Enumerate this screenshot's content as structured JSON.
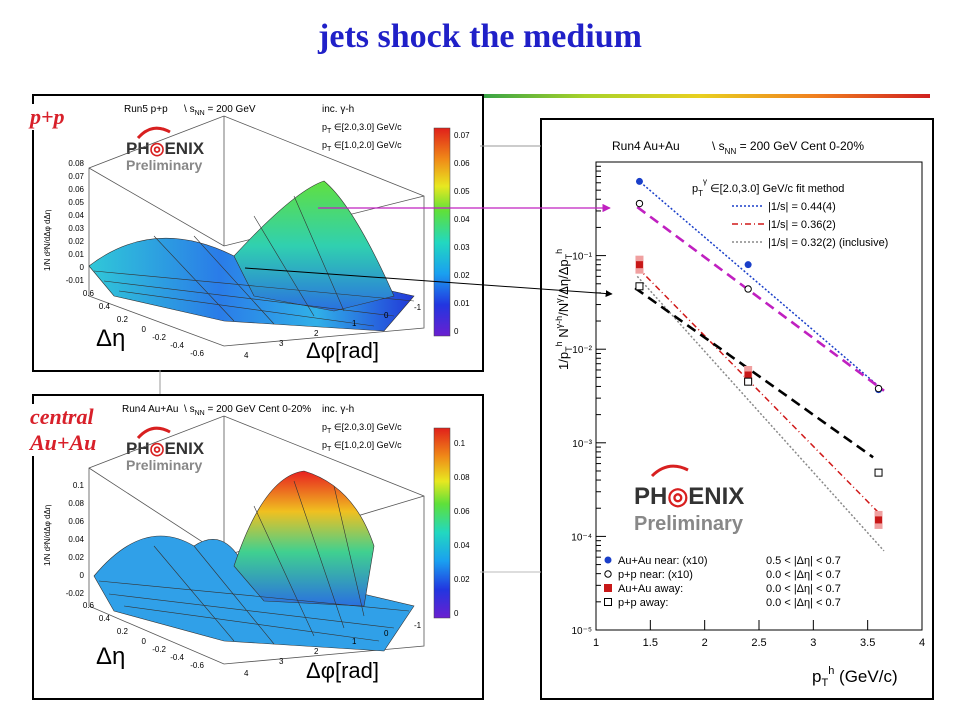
{
  "slide": {
    "title": "jets shock the medium",
    "labels": {
      "pp": "p+p",
      "central_line1": "central",
      "central_line2": "Au+Au"
    }
  },
  "top_panel": {
    "run": "Run5 p+p",
    "sqrt": "\\",
    "energy": "s",
    "energy_sub": "NN",
    "energy_val": "= 200 GeV",
    "inc": "inc. γ-h",
    "pt_gamma": "p",
    "pt_gamma_range": "∈[2.0,3.0] GeV/c",
    "pt_h_range": "∈[1.0,2.0] GeV/c",
    "logo_top": "PH",
    "logo_rest": "ENIX",
    "logo_sub": "Preliminary",
    "zlabel": "1/N d²N/dΔφ dΔη",
    "zticks": [
      "0.08",
      "0.07",
      "0.06",
      "0.05",
      "0.04",
      "0.03",
      "0.02",
      "0.01",
      "0",
      "-0.01"
    ],
    "eta_ticks": [
      "0.6",
      "0.4",
      "0.2",
      "0",
      "-0.2",
      "-0.4",
      "-0.6"
    ],
    "phi_ticks": [
      "4",
      "3",
      "2",
      "1",
      "0",
      "-1"
    ],
    "eta_label": "Δη",
    "phi_label": "Δφ[rad]",
    "colorbar": [
      "0.07",
      "0.06",
      "0.05",
      "0.04",
      "0.03",
      "0.02",
      "0.01",
      "0"
    ]
  },
  "bottom_panel": {
    "run": "Run4 Au+Au",
    "sqrt": "\\",
    "energy_val": "s",
    "energy_sub": "NN",
    "energy_rest": "= 200 GeV Cent 0-20%",
    "inc": "inc. γ-h",
    "pt_gamma_range": "∈[2.0,3.0] GeV/c",
    "pt_h_range": "∈[1.0,2.0] GeV/c",
    "logo_top": "PH",
    "logo_rest": "ENIX",
    "logo_sub": "Preliminary",
    "zticks": [
      "0.1",
      "0.08",
      "0.06",
      "0.04",
      "0.02",
      "0",
      "-0.02"
    ],
    "eta_ticks": [
      "0.6",
      "0.4",
      "0.2",
      "0",
      "-0.2",
      "-0.4",
      "-0.6"
    ],
    "phi_ticks": [
      "4",
      "3",
      "2",
      "1",
      "0",
      "-1"
    ],
    "eta_label": "Δη",
    "phi_label": "Δφ[rad]",
    "colorbar": [
      "0.1",
      "0.08",
      "0.06",
      "0.04",
      "0.02",
      "0"
    ]
  },
  "chart_data": [
    {
      "type": "scatter",
      "header": "Run4 Au+Au",
      "header_energy": "= 200 GeV Cent 0-20%",
      "legend_title": "∈[2.0,3.0] GeV/c   fit method",
      "ylabel": "1/p_T^h N^{γ-h}/N^γ/Δη/Δp_T^h",
      "xlabel": "p_T^h (GeV/c)",
      "xlim": [
        1,
        4
      ],
      "ylim": [
        1e-05,
        1
      ],
      "yscale": "log",
      "x_ticks": [
        "1",
        "1.5",
        "2",
        "2.5",
        "3",
        "3.5",
        "4"
      ],
      "y_ticks": [
        "10⁻⁵",
        "10⁻⁴",
        "10⁻³",
        "10⁻²",
        "10⁻¹"
      ],
      "fits": [
        {
          "label": "|1/s| = 0.44(4)",
          "color": "#1a3fc9",
          "style": "dotted",
          "x": [
            1.38,
            3.65
          ],
          "y": [
            0.65,
            0.0036
          ]
        },
        {
          "label": "|1/s| = 0.36(2)",
          "color": "#d01818",
          "style": "dashdot",
          "x": [
            1.38,
            3.62
          ],
          "y": [
            0.075,
            0.00017
          ]
        },
        {
          "label": "|1/s| = 0.32(2) (inclusive)",
          "color": "#888888",
          "style": "dotted",
          "x": [
            1.38,
            3.65
          ],
          "y": [
            0.06,
            7e-05
          ]
        }
      ],
      "extra_lines": [
        {
          "color": "#c020c0",
          "style": "dashed",
          "x": [
            1.38,
            3.65
          ],
          "y": [
            0.33,
            0.0036
          ]
        },
        {
          "color": "#000000",
          "style": "dashed",
          "x": [
            1.36,
            3.55
          ],
          "y": [
            0.045,
            0.0007
          ]
        }
      ],
      "series": [
        {
          "name": "Au+Au near: (x10)",
          "cond": "0.5 < |Δη| < 0.7",
          "marker": "filled-circle",
          "color": "#1a3fc9",
          "x": [
            1.4,
            2.4,
            3.6
          ],
          "y": [
            0.62,
            0.08,
            0.0037
          ]
        },
        {
          "name": "p+p near: (x10)",
          "cond": "0.0 < |Δη| < 0.7",
          "marker": "open-circle",
          "color": "#000000",
          "x": [
            1.4,
            2.4,
            3.6
          ],
          "y": [
            0.36,
            0.044,
            0.0038
          ]
        },
        {
          "name": "Au+Au away:",
          "cond": "0.0 < |Δη| < 0.7",
          "marker": "filled-square",
          "color": "#c81818",
          "x": [
            1.4,
            2.4,
            3.6
          ],
          "y": [
            0.08,
            0.0053,
            0.00015
          ]
        },
        {
          "name": "p+p away:",
          "cond": "0.0 < |Δη| < 0.7",
          "marker": "open-square",
          "color": "#000000",
          "x": [
            1.4,
            2.4,
            3.6
          ],
          "y": [
            0.047,
            0.0045,
            0.00048
          ]
        }
      ]
    }
  ]
}
